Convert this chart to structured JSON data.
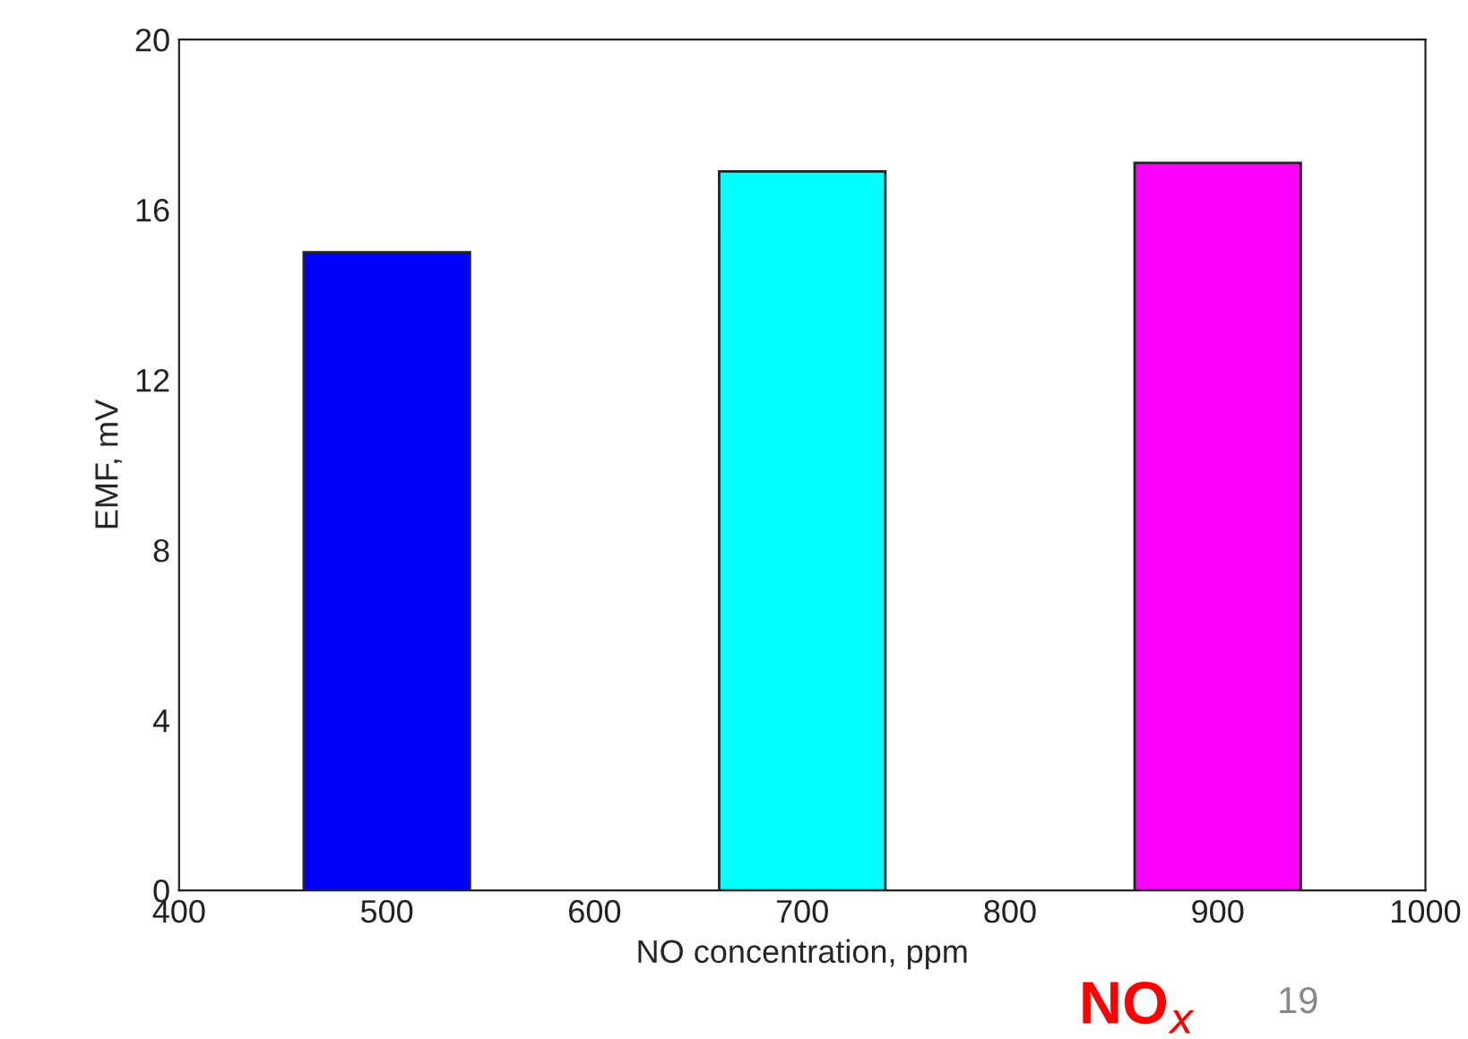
{
  "chart_data": {
    "type": "bar",
    "x": [
      500,
      700,
      900
    ],
    "values": [
      15.0,
      16.9,
      17.1
    ],
    "colors": [
      "#0000ff",
      "#00ffff",
      "#ff00ff"
    ],
    "xlabel": "NO concentration, ppm",
    "ylabel": "EMF, mV",
    "xlim": [
      400,
      1000
    ],
    "xticks": [
      400,
      500,
      600,
      700,
      800,
      900,
      1000
    ],
    "ylim": [
      0,
      20
    ],
    "yticks": [
      0,
      4,
      8,
      12,
      16,
      20
    ],
    "annotations": [
      "NO$_{x}$",
      "19"
    ],
    "grid": false,
    "legend": false
  }
}
